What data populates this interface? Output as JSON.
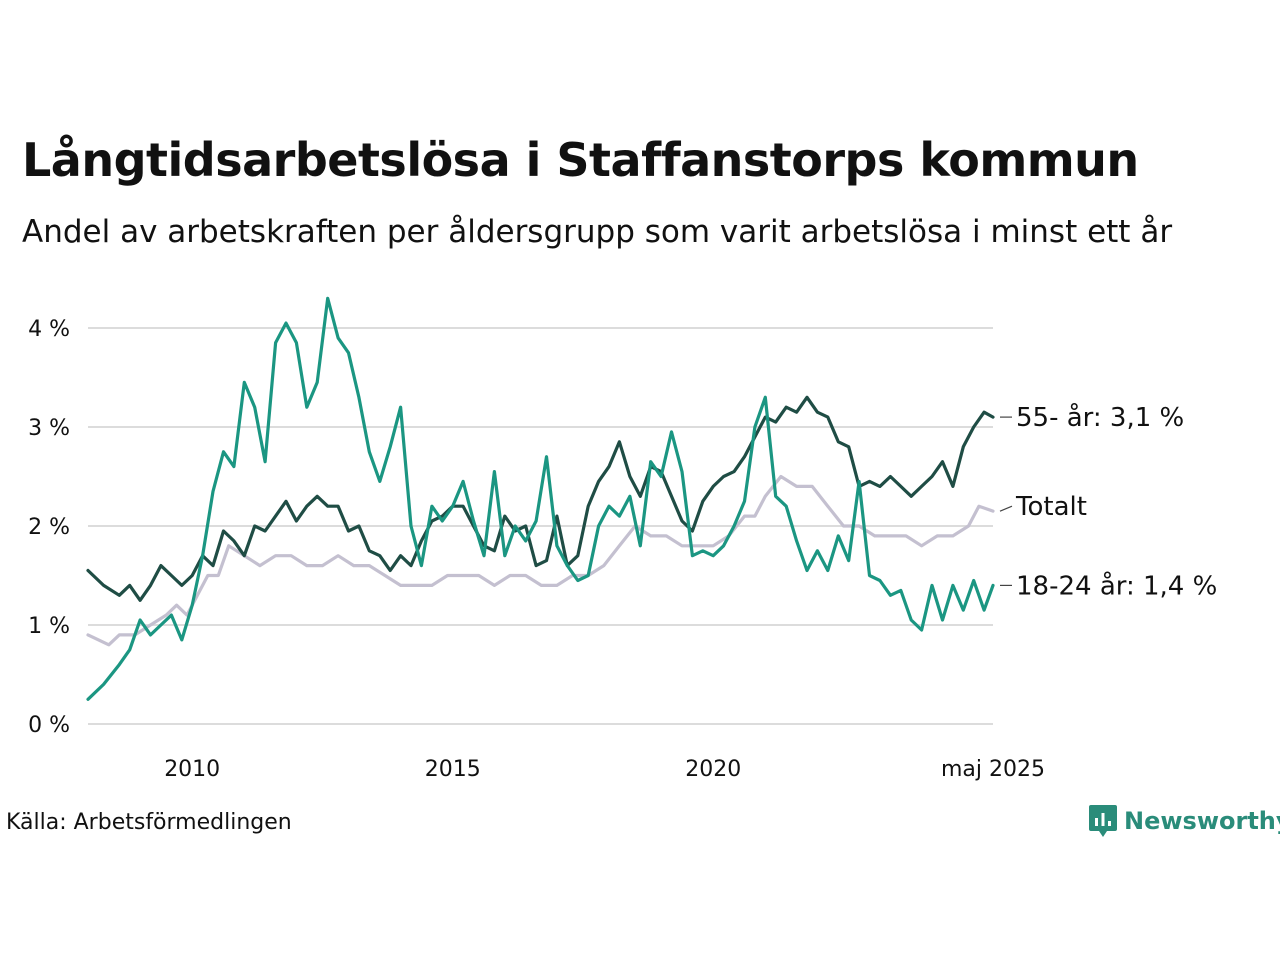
{
  "title": "Långtidsarbetslösa i Staffanstorps kommun",
  "subtitle": "Andel av arbetskraften per åldersgrupp som varit arbetslösa i minst ett år",
  "source": "Källa: Arbetsförmedlingen",
  "brand": "Newsworthy",
  "colors": {
    "s55": "#1f4d45",
    "s1824": "#1b9682",
    "total": "#c4c0d0",
    "grid": "#dcdcdc",
    "brand": "#2a8c7a"
  },
  "chart_data": {
    "type": "line",
    "title": "Långtidsarbetslösa i Staffanstorps kommun",
    "subtitle": "Andel av arbetskraften per åldersgrupp som varit arbetslösa i minst ett år",
    "xlim": [
      2008.0,
      2025.37
    ],
    "ylim": [
      0,
      4
    ],
    "y_ticks": [
      {
        "value": 0,
        "label": "0 %"
      },
      {
        "value": 1,
        "label": "1 %"
      },
      {
        "value": 2,
        "label": "2 %"
      },
      {
        "value": 3,
        "label": "3 %"
      },
      {
        "value": 4,
        "label": "4 %"
      }
    ],
    "x_ticks": [
      {
        "value": 2010,
        "label": "2010"
      },
      {
        "value": 2015,
        "label": "2015"
      },
      {
        "value": 2020,
        "label": "2020"
      },
      {
        "value": 2025.37,
        "label": "maj 2025"
      }
    ],
    "grid": true,
    "legend": "end-labels",
    "series": [
      {
        "key": "total",
        "name": "Totalt",
        "label": "Totalt",
        "x": [
          2008.0,
          2008.4,
          2008.6,
          2008.9,
          2009.2,
          2009.5,
          2009.7,
          2009.9,
          2010.1,
          2010.3,
          2010.5,
          2010.7,
          2011.0,
          2011.3,
          2011.6,
          2011.9,
          2012.2,
          2012.5,
          2012.8,
          2013.1,
          2013.4,
          2013.7,
          2014.0,
          2014.3,
          2014.6,
          2014.9,
          2015.2,
          2015.5,
          2015.8,
          2016.1,
          2016.4,
          2016.7,
          2017.0,
          2017.3,
          2017.6,
          2017.9,
          2018.2,
          2018.5,
          2018.8,
          2019.1,
          2019.4,
          2019.7,
          2020.0,
          2020.3,
          2020.6,
          2020.8,
          2021.0,
          2021.3,
          2021.6,
          2021.9,
          2022.2,
          2022.5,
          2022.8,
          2023.1,
          2023.4,
          2023.7,
          2024.0,
          2024.3,
          2024.6,
          2024.9,
          2025.1,
          2025.37
        ],
        "y": [
          0.9,
          0.8,
          0.9,
          0.9,
          1.0,
          1.1,
          1.2,
          1.1,
          1.3,
          1.5,
          1.5,
          1.8,
          1.7,
          1.6,
          1.7,
          1.7,
          1.6,
          1.6,
          1.7,
          1.6,
          1.6,
          1.5,
          1.4,
          1.4,
          1.4,
          1.5,
          1.5,
          1.5,
          1.4,
          1.5,
          1.5,
          1.4,
          1.4,
          1.5,
          1.5,
          1.6,
          1.8,
          2.0,
          1.9,
          1.9,
          1.8,
          1.8,
          1.8,
          1.9,
          2.1,
          2.1,
          2.3,
          2.5,
          2.4,
          2.4,
          2.2,
          2.0,
          2.0,
          1.9,
          1.9,
          1.9,
          1.8,
          1.9,
          1.9,
          2.0,
          2.2,
          2.15
        ]
      },
      {
        "key": "s55",
        "name": "55- år",
        "label": "55- år: 3,1 %",
        "x": [
          2008.0,
          2008.3,
          2008.6,
          2008.8,
          2009.0,
          2009.2,
          2009.4,
          2009.6,
          2009.8,
          2010.0,
          2010.2,
          2010.4,
          2010.6,
          2010.8,
          2011.0,
          2011.2,
          2011.4,
          2011.6,
          2011.8,
          2012.0,
          2012.2,
          2012.4,
          2012.6,
          2012.8,
          2013.0,
          2013.2,
          2013.4,
          2013.6,
          2013.8,
          2014.0,
          2014.2,
          2014.4,
          2014.6,
          2014.8,
          2015.0,
          2015.2,
          2015.4,
          2015.6,
          2015.8,
          2016.0,
          2016.2,
          2016.4,
          2016.6,
          2016.8,
          2017.0,
          2017.2,
          2017.4,
          2017.6,
          2017.8,
          2018.0,
          2018.2,
          2018.4,
          2018.6,
          2018.8,
          2019.0,
          2019.2,
          2019.4,
          2019.6,
          2019.8,
          2020.0,
          2020.2,
          2020.4,
          2020.6,
          2020.8,
          2021.0,
          2021.2,
          2021.4,
          2021.6,
          2021.8,
          2022.0,
          2022.2,
          2022.4,
          2022.6,
          2022.8,
          2023.0,
          2023.2,
          2023.4,
          2023.6,
          2023.8,
          2024.0,
          2024.2,
          2024.4,
          2024.6,
          2024.8,
          2025.0,
          2025.2,
          2025.37
        ],
        "y": [
          1.55,
          1.4,
          1.3,
          1.4,
          1.25,
          1.4,
          1.6,
          1.5,
          1.4,
          1.5,
          1.7,
          1.6,
          1.95,
          1.85,
          1.7,
          2.0,
          1.95,
          2.1,
          2.25,
          2.05,
          2.2,
          2.3,
          2.2,
          2.2,
          1.95,
          2.0,
          1.75,
          1.7,
          1.55,
          1.7,
          1.6,
          1.85,
          2.05,
          2.1,
          2.2,
          2.2,
          2.0,
          1.8,
          1.75,
          2.1,
          1.95,
          2.0,
          1.6,
          1.65,
          2.1,
          1.6,
          1.7,
          2.2,
          2.45,
          2.6,
          2.85,
          2.5,
          2.3,
          2.6,
          2.55,
          2.3,
          2.05,
          1.95,
          2.25,
          2.4,
          2.5,
          2.55,
          2.7,
          2.9,
          3.1,
          3.05,
          3.2,
          3.15,
          3.3,
          3.15,
          3.1,
          2.85,
          2.8,
          2.4,
          2.45,
          2.4,
          2.5,
          2.4,
          2.3,
          2.4,
          2.5,
          2.65,
          2.4,
          2.8,
          3.0,
          3.15,
          3.1
        ]
      },
      {
        "key": "s1824",
        "name": "18-24 år",
        "label": "18-24 år: 1,4 %",
        "x": [
          2008.0,
          2008.3,
          2008.6,
          2008.8,
          2009.0,
          2009.2,
          2009.4,
          2009.6,
          2009.8,
          2010.0,
          2010.2,
          2010.4,
          2010.6,
          2010.8,
          2011.0,
          2011.2,
          2011.4,
          2011.6,
          2011.8,
          2012.0,
          2012.2,
          2012.4,
          2012.6,
          2012.8,
          2013.0,
          2013.2,
          2013.4,
          2013.6,
          2013.8,
          2014.0,
          2014.2,
          2014.4,
          2014.6,
          2014.8,
          2015.0,
          2015.2,
          2015.4,
          2015.6,
          2015.8,
          2016.0,
          2016.2,
          2016.4,
          2016.6,
          2016.8,
          2017.0,
          2017.2,
          2017.4,
          2017.6,
          2017.8,
          2018.0,
          2018.2,
          2018.4,
          2018.6,
          2018.8,
          2019.0,
          2019.2,
          2019.4,
          2019.6,
          2019.8,
          2020.0,
          2020.2,
          2020.4,
          2020.6,
          2020.8,
          2021.0,
          2021.2,
          2021.4,
          2021.6,
          2021.8,
          2022.0,
          2022.2,
          2022.4,
          2022.6,
          2022.8,
          2023.0,
          2023.2,
          2023.4,
          2023.6,
          2023.8,
          2024.0,
          2024.2,
          2024.4,
          2024.6,
          2024.8,
          2025.0,
          2025.2,
          2025.37
        ],
        "y": [
          0.25,
          0.4,
          0.6,
          0.75,
          1.05,
          0.9,
          1.0,
          1.1,
          0.85,
          1.2,
          1.7,
          2.35,
          2.75,
          2.6,
          3.45,
          3.2,
          2.65,
          3.85,
          4.05,
          3.85,
          3.2,
          3.45,
          4.3,
          3.9,
          3.75,
          3.3,
          2.75,
          2.45,
          2.8,
          3.2,
          2.0,
          1.6,
          2.2,
          2.05,
          2.2,
          2.45,
          2.05,
          1.7,
          2.55,
          1.7,
          2.0,
          1.85,
          2.05,
          2.7,
          1.8,
          1.6,
          1.45,
          1.5,
          2.0,
          2.2,
          2.1,
          2.3,
          1.8,
          2.65,
          2.5,
          2.95,
          2.55,
          1.7,
          1.75,
          1.7,
          1.8,
          2.0,
          2.25,
          3.0,
          3.3,
          2.3,
          2.2,
          1.85,
          1.55,
          1.75,
          1.55,
          1.9,
          1.65,
          2.45,
          1.5,
          1.45,
          1.3,
          1.35,
          1.05,
          0.95,
          1.4,
          1.05,
          1.4,
          1.15,
          1.45,
          1.15,
          1.4
        ]
      }
    ]
  }
}
